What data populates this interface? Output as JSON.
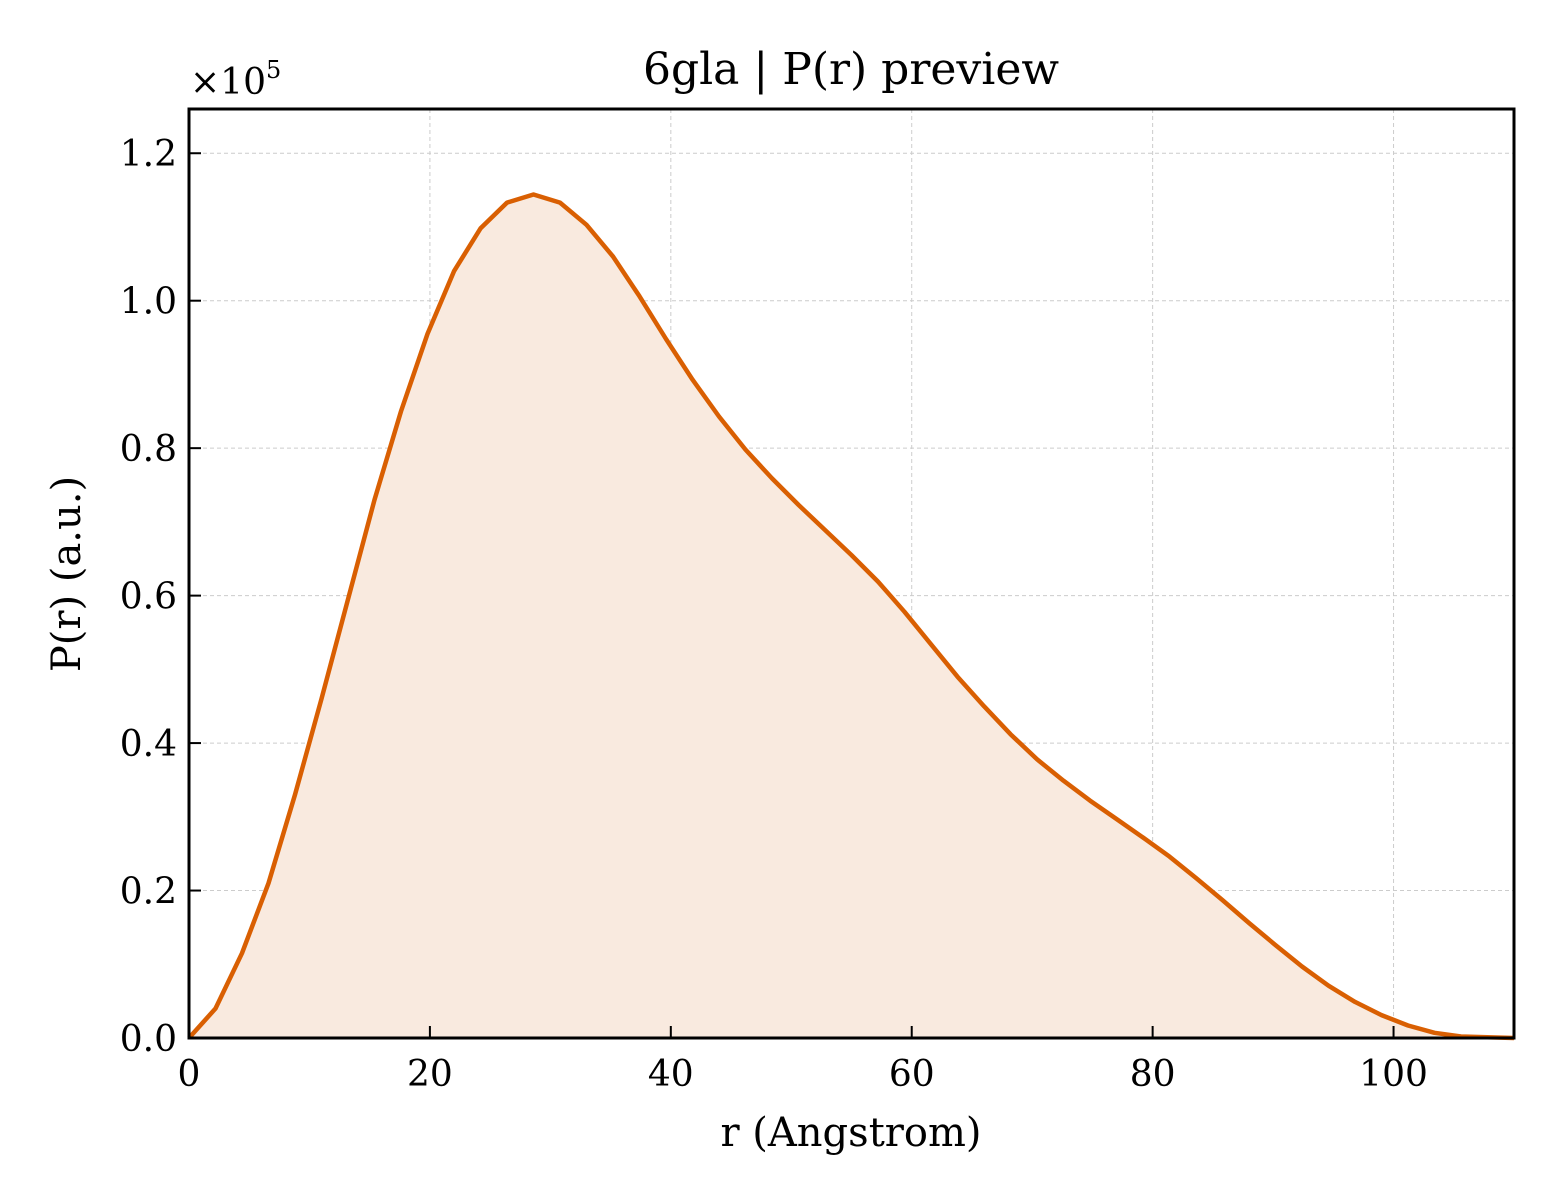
{
  "chart_data": {
    "type": "area",
    "title": "6gla | P(r) preview",
    "xlabel": "r (Angstrom)",
    "ylabel": "P(r) (a.u.)",
    "y_scale_label": "×10",
    "y_scale_exponent": "5",
    "y_multiplier": 100000,
    "xlim": [
      0,
      110
    ],
    "ylim": [
      0,
      1.26
    ],
    "x_ticks": [
      0,
      20,
      40,
      60,
      80,
      100
    ],
    "x_tick_labels": [
      "0",
      "20",
      "40",
      "60",
      "80",
      "100"
    ],
    "y_ticks": [
      0,
      0.2,
      0.4,
      0.6,
      0.8,
      1.0,
      1.2
    ],
    "y_tick_labels": [
      "0.0",
      "0.2",
      "0.4",
      "0.6",
      "0.8",
      "1.0",
      "1.2"
    ],
    "grid": true,
    "line_color": "#d95f02",
    "fill_color": "#f9eadf",
    "series": [
      {
        "x": [
          0,
          2.2,
          4.4,
          6.6,
          8.8,
          11,
          13.2,
          15.4,
          17.6,
          19.8,
          22,
          24.2,
          26.4,
          28.6,
          30.8,
          33,
          35.2,
          37.4,
          39.6,
          41.8,
          44,
          46.2,
          48.4,
          50.6,
          52.8,
          55,
          57.2,
          59.4,
          61.6,
          63.8,
          66,
          68.2,
          70.4,
          72.6,
          74.8,
          77,
          79.2,
          81.4,
          83.6,
          85.8,
          88,
          90.2,
          92.4,
          94.6,
          96.8,
          99,
          101.2,
          103.4,
          105.6,
          107.8,
          110
        ],
        "y": [
          0.0,
          0.04,
          0.115,
          0.21,
          0.33,
          0.46,
          0.595,
          0.73,
          0.85,
          0.955,
          1.04,
          1.098,
          1.133,
          1.144,
          1.133,
          1.103,
          1.06,
          1.006,
          0.948,
          0.893,
          0.843,
          0.798,
          0.759,
          0.723,
          0.689,
          0.655,
          0.619,
          0.578,
          0.534,
          0.49,
          0.45,
          0.412,
          0.378,
          0.349,
          0.322,
          0.297,
          0.272,
          0.246,
          0.217,
          0.187,
          0.156,
          0.126,
          0.097,
          0.071,
          0.049,
          0.031,
          0.017,
          0.007,
          0.002,
          0.001,
          0.0
        ]
      }
    ]
  }
}
